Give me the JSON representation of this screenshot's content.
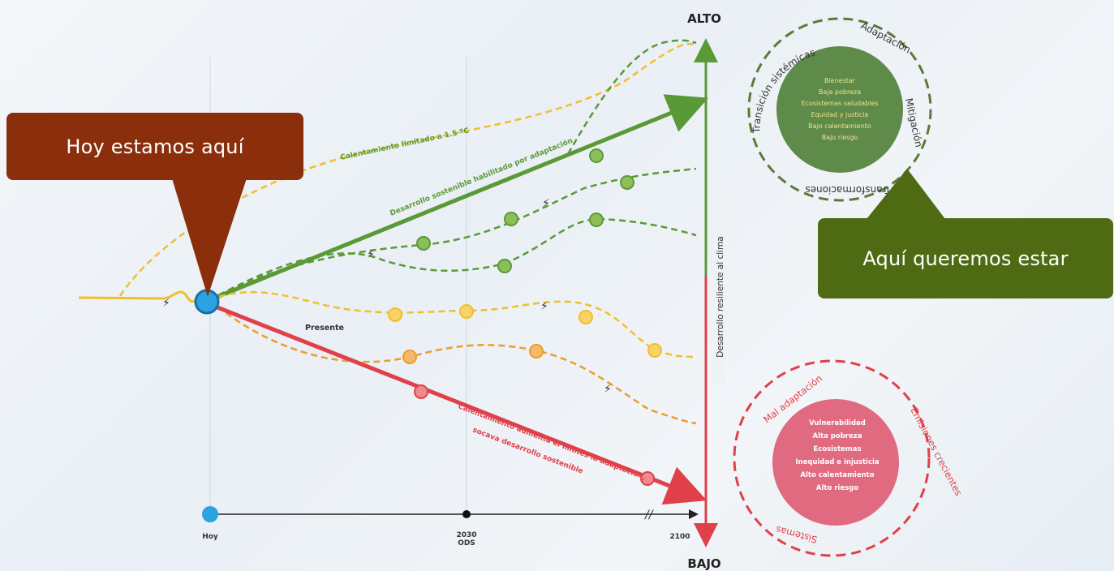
{
  "axis": {
    "top_label": "ALTO",
    "bottom_label": "BAJO",
    "vertical_label": "Desarrollo resiliente al clima"
  },
  "timeline": {
    "ticks": [
      {
        "label": "Hoy",
        "sublabel": ""
      },
      {
        "label": "2030",
        "sublabel": "ODS"
      },
      {
        "label": "2100",
        "sublabel": ""
      }
    ]
  },
  "pathways": {
    "green_limited_label": "Calentamiento limitado a 1.5 ºC",
    "green_main_label": "Desarrollo sostenible habilitado por adaptación",
    "present_label": "Presente",
    "red_label_line1": "Calentamiento aumenta el límites la adaptación,",
    "red_label_line2": "socava desarrollo sostenible"
  },
  "good_outcome": {
    "ring_labels": [
      "Transición sistémicas",
      "Adaptación",
      "Mitigación",
      "Transformaciones"
    ],
    "items": [
      "Bienestar",
      "Baja pobreza",
      "Ecosistemas saludables",
      "Equidad y justicia",
      "Bajo calentamiento",
      "Bajo riesgo"
    ]
  },
  "bad_outcome": {
    "ring_labels": [
      "Mal adaptación",
      "Emisiones crecientes",
      "Sistemas"
    ],
    "items": [
      "Vulnerabilidad",
      "Alta pobreza",
      "Ecosistemas",
      "Inequidad e injusticia",
      "Alto calentamiento",
      "Alto riesgo"
    ]
  },
  "callouts": {
    "today": "Hoy estamos aquí",
    "goal": "Aquí queremos estar"
  },
  "colors": {
    "green": "#5a9a36",
    "red": "#e0404a",
    "yellow": "#f2bf2c",
    "orange": "#ef9a2c",
    "blue": "#2aa3e0",
    "callout_today": "#8a2e0b",
    "callout_goal": "#4e6b13"
  }
}
